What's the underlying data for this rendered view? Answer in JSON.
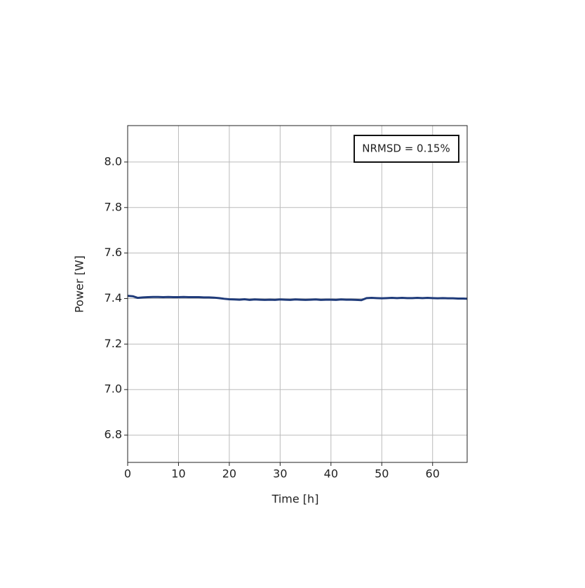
{
  "chart_data": {
    "type": "line",
    "x_label": "Time [h]",
    "y_label": "Power [W]",
    "annotation": "NRMSD = 0.15%",
    "x": [
      0,
      1,
      2,
      3,
      4,
      5,
      6,
      7,
      8,
      9,
      10,
      11,
      12,
      13,
      14,
      15,
      16,
      17,
      18,
      19,
      20,
      21,
      22,
      23,
      24,
      25,
      26,
      27,
      28,
      29,
      30,
      31,
      32,
      33,
      34,
      35,
      36,
      37,
      38,
      39,
      40,
      41,
      42,
      43,
      44,
      45,
      46,
      47,
      48,
      49,
      50,
      51,
      52,
      53,
      54,
      55,
      56,
      57,
      58,
      59,
      60,
      61,
      62,
      63,
      64,
      65,
      66,
      66.8
    ],
    "series": [
      {
        "name": "Power",
        "color": "#1f3b7a",
        "values": [
          7.412,
          7.41,
          7.403,
          7.405,
          7.406,
          7.407,
          7.407,
          7.406,
          7.407,
          7.406,
          7.406,
          7.407,
          7.406,
          7.406,
          7.406,
          7.405,
          7.405,
          7.404,
          7.402,
          7.399,
          7.397,
          7.396,
          7.395,
          7.397,
          7.394,
          7.396,
          7.395,
          7.394,
          7.395,
          7.394,
          7.396,
          7.395,
          7.394,
          7.396,
          7.395,
          7.394,
          7.395,
          7.396,
          7.394,
          7.395,
          7.395,
          7.394,
          7.396,
          7.395,
          7.395,
          7.394,
          7.393,
          7.402,
          7.403,
          7.402,
          7.401,
          7.402,
          7.403,
          7.402,
          7.403,
          7.402,
          7.402,
          7.403,
          7.402,
          7.403,
          7.402,
          7.401,
          7.402,
          7.401,
          7.401,
          7.4,
          7.4,
          7.399
        ]
      }
    ],
    "xlim": [
      0,
      66.8
    ],
    "ylim": [
      6.68,
      8.16
    ],
    "xticks": [
      0,
      10,
      20,
      30,
      40,
      50,
      60
    ],
    "yticks": [
      6.8,
      {
        "value": 7,
        "label": "7.0"
      },
      7.2,
      7.4,
      7.6,
      7.8,
      {
        "value": 8,
        "label": "8.0"
      }
    ],
    "grid": true
  }
}
